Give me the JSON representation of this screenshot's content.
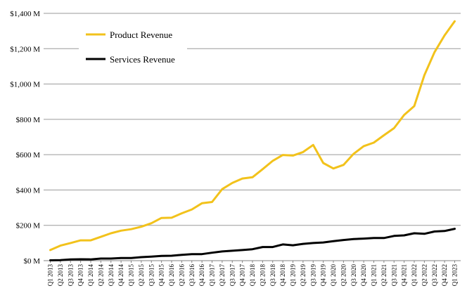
{
  "chart_data": {
    "type": "line",
    "title": "",
    "xlabel": "",
    "ylabel": "",
    "ylim": [
      0,
      1400
    ],
    "y_ticks": [
      0,
      200,
      400,
      600,
      800,
      1000,
      1200,
      1400
    ],
    "y_tick_labels": [
      "$0 M",
      "$200 M",
      "$400 M",
      "$600 M",
      "$800 M",
      "$1,000 M",
      "$1,200 M",
      "$1,400 M"
    ],
    "grid": "horizontal",
    "legend_position": "top-left",
    "categories": [
      "Q1 2013",
      "Q2 2013",
      "Q3 2013",
      "Q4 2013",
      "Q1 2014",
      "Q2 2014",
      "Q3 2014",
      "Q4 2014",
      "Q1 2015",
      "Q2 2015",
      "Q3 2015",
      "Q4 2015",
      "Q1 2016",
      "Q2 2016",
      "Q3 2016",
      "Q4 2016",
      "Q1 2017",
      "Q2 2017",
      "Q3 2017",
      "Q4 2017",
      "Q1 2018",
      "Q2 2018",
      "Q3 2018",
      "Q4 2018",
      "Q1 2019",
      "Q2 2019",
      "Q3 2019",
      "Q4 2019",
      "Q1 2020",
      "Q2 2020",
      "Q3 2020",
      "Q4 2020",
      "Q1 2021",
      "Q2 2021",
      "Q3 2021",
      "Q4 2021",
      "Q1 2022",
      "Q2 2022",
      "Q3 2022",
      "Q4 2022",
      "Q1 2023"
    ],
    "series": [
      {
        "name": "Product Revenue",
        "color": "#f2c21b",
        "values": [
          60,
          85,
          100,
          115,
          115,
          135,
          155,
          170,
          178,
          192,
          212,
          242,
          243,
          268,
          290,
          325,
          332,
          405,
          440,
          465,
          472,
          518,
          565,
          598,
          595,
          615,
          655,
          553,
          522,
          542,
          605,
          648,
          668,
          710,
          750,
          825,
          875,
          1050,
          1180,
          1275,
          1355
        ]
      },
      {
        "name": "Services Revenue",
        "color": "#000000",
        "values": [
          2,
          3,
          7,
          8,
          7,
          12,
          12,
          15,
          15,
          20,
          23,
          27,
          28,
          33,
          37,
          37,
          45,
          52,
          56,
          60,
          65,
          77,
          77,
          92,
          87,
          95,
          100,
          103,
          110,
          117,
          122,
          125,
          128,
          128,
          140,
          143,
          155,
          152,
          165,
          168,
          180
        ]
      }
    ]
  }
}
